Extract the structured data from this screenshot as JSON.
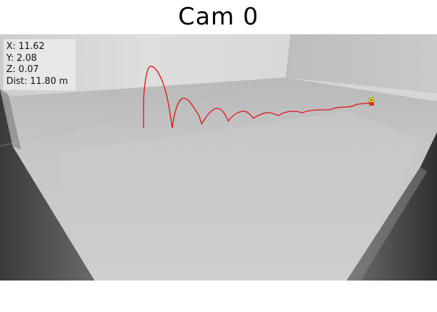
{
  "title": "Cam 0",
  "readout": {
    "x": "X: 11.62",
    "y": "Y: 2.08",
    "z": "Z: 0.07",
    "dist": "Dist: 11.80 m"
  },
  "colors": {
    "trajectory": "#e01010",
    "target_marker": "#f0e020",
    "floor": "#c8c8c8",
    "wall": "#d0d0d0"
  },
  "icons": {
    "target": "target-marker-icon"
  }
}
